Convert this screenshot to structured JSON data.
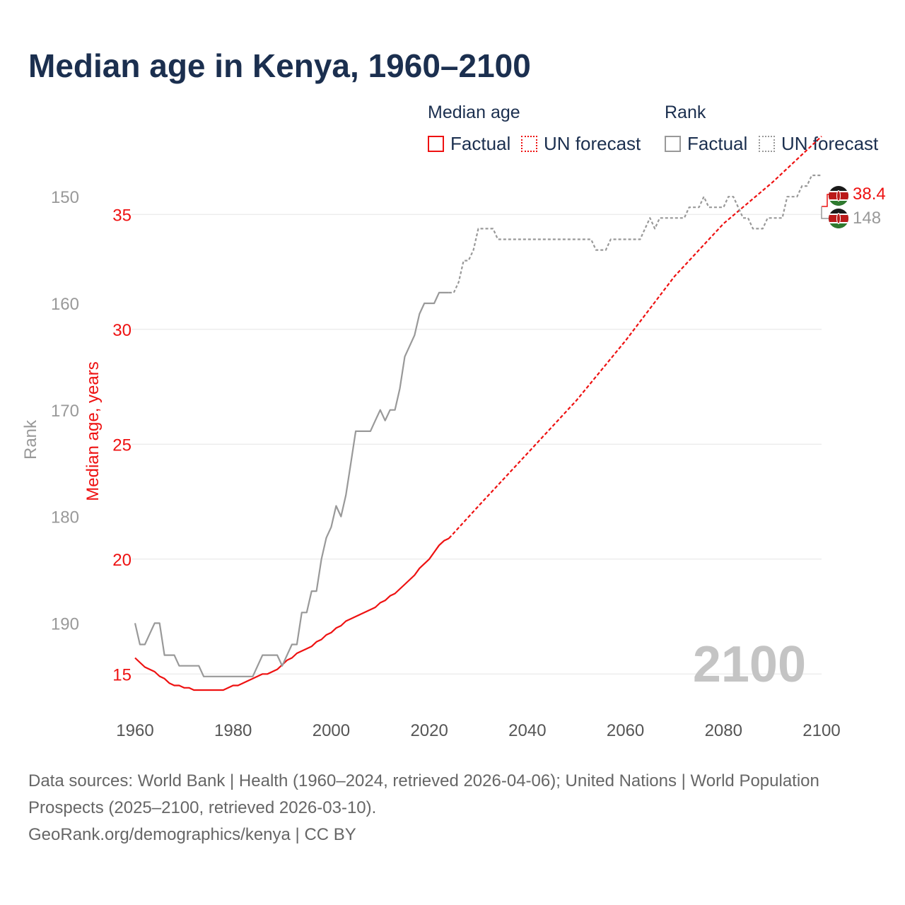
{
  "title": "Median age in Kenya, 1960–2100",
  "legend": {
    "median_header": "Median age",
    "rank_header": "Rank",
    "factual": "Factual",
    "forecast": "UN forecast"
  },
  "colors": {
    "median": "#ee1111",
    "rank": "#999999",
    "title": "#1b2f4f",
    "grid": "#e6e6e6",
    "year_label": "#c4c4c4"
  },
  "year_label": "2100",
  "end_labels": {
    "median": "38.4",
    "rank": "148"
  },
  "footer": {
    "sources": "Data sources: World Bank | Health (1960–2024, retrieved 2026-04-06); United Nations | World Population Prospects (2025–2100, retrieved 2026-03-10).",
    "credit": "GeoRank.org/demographics/kenya | CC BY"
  },
  "chart_data": {
    "type": "line",
    "xlabel": "",
    "ylabel_median": "Median age, years",
    "ylabel_rank": "Rank",
    "xlim": [
      1960,
      2100
    ],
    "x_ticks": [
      1960,
      1980,
      2000,
      2020,
      2040,
      2060,
      2080,
      2100
    ],
    "median_ylim": [
      13.5,
      36.7
    ],
    "median_ticks": [
      15,
      20,
      25,
      30,
      35
    ],
    "rank_ylim": [
      148,
      198
    ],
    "rank_ticks": [
      150,
      160,
      170,
      180,
      190
    ],
    "rank_inverted": true,
    "series": [
      {
        "name": "Median age (Factual)",
        "axis": "median",
        "points": [
          [
            1960,
            15.7
          ],
          [
            1961,
            15.5
          ],
          [
            1962,
            15.3
          ],
          [
            1963,
            15.2
          ],
          [
            1964,
            15.1
          ],
          [
            1965,
            14.9
          ],
          [
            1966,
            14.8
          ],
          [
            1967,
            14.6
          ],
          [
            1968,
            14.5
          ],
          [
            1969,
            14.5
          ],
          [
            1970,
            14.4
          ],
          [
            1971,
            14.4
          ],
          [
            1972,
            14.3
          ],
          [
            1973,
            14.3
          ],
          [
            1974,
            14.3
          ],
          [
            1975,
            14.3
          ],
          [
            1976,
            14.3
          ],
          [
            1977,
            14.3
          ],
          [
            1978,
            14.3
          ],
          [
            1979,
            14.4
          ],
          [
            1980,
            14.5
          ],
          [
            1981,
            14.5
          ],
          [
            1982,
            14.6
          ],
          [
            1983,
            14.7
          ],
          [
            1984,
            14.8
          ],
          [
            1985,
            14.9
          ],
          [
            1986,
            15.0
          ],
          [
            1987,
            15.0
          ],
          [
            1988,
            15.1
          ],
          [
            1989,
            15.2
          ],
          [
            1990,
            15.4
          ],
          [
            1991,
            15.6
          ],
          [
            1992,
            15.7
          ],
          [
            1993,
            15.9
          ],
          [
            1994,
            16.0
          ],
          [
            1995,
            16.1
          ],
          [
            1996,
            16.2
          ],
          [
            1997,
            16.4
          ],
          [
            1998,
            16.5
          ],
          [
            1999,
            16.7
          ],
          [
            2000,
            16.8
          ],
          [
            2001,
            17.0
          ],
          [
            2002,
            17.1
          ],
          [
            2003,
            17.3
          ],
          [
            2004,
            17.4
          ],
          [
            2005,
            17.5
          ],
          [
            2006,
            17.6
          ],
          [
            2007,
            17.7
          ],
          [
            2008,
            17.8
          ],
          [
            2009,
            17.9
          ],
          [
            2010,
            18.1
          ],
          [
            2011,
            18.2
          ],
          [
            2012,
            18.4
          ],
          [
            2013,
            18.5
          ],
          [
            2014,
            18.7
          ],
          [
            2015,
            18.9
          ],
          [
            2016,
            19.1
          ],
          [
            2017,
            19.3
          ],
          [
            2018,
            19.6
          ],
          [
            2019,
            19.8
          ],
          [
            2020,
            20.0
          ],
          [
            2021,
            20.3
          ],
          [
            2022,
            20.6
          ],
          [
            2023,
            20.8
          ],
          [
            2024,
            20.9
          ]
        ]
      },
      {
        "name": "Median age (UN forecast)",
        "axis": "median",
        "points": [
          [
            2024,
            20.9
          ],
          [
            2030,
            22.3
          ],
          [
            2040,
            24.6
          ],
          [
            2050,
            26.9
          ],
          [
            2060,
            29.5
          ],
          [
            2070,
            32.3
          ],
          [
            2080,
            34.6
          ],
          [
            2090,
            36.4
          ],
          [
            2100,
            38.4
          ]
        ]
      },
      {
        "name": "Rank (Factual)",
        "axis": "rank",
        "points": [
          [
            1960,
            190
          ],
          [
            1961,
            192
          ],
          [
            1962,
            192
          ],
          [
            1963,
            191
          ],
          [
            1964,
            190
          ],
          [
            1965,
            190
          ],
          [
            1966,
            193
          ],
          [
            1967,
            193
          ],
          [
            1968,
            193
          ],
          [
            1969,
            194
          ],
          [
            1970,
            194
          ],
          [
            1971,
            194
          ],
          [
            1972,
            194
          ],
          [
            1973,
            194
          ],
          [
            1974,
            195
          ],
          [
            1975,
            195
          ],
          [
            1976,
            195
          ],
          [
            1977,
            195
          ],
          [
            1978,
            195
          ],
          [
            1979,
            195
          ],
          [
            1980,
            195
          ],
          [
            1981,
            195
          ],
          [
            1982,
            195
          ],
          [
            1983,
            195
          ],
          [
            1984,
            195
          ],
          [
            1985,
            194
          ],
          [
            1986,
            193
          ],
          [
            1987,
            193
          ],
          [
            1988,
            193
          ],
          [
            1989,
            193
          ],
          [
            1990,
            194
          ],
          [
            1991,
            193
          ],
          [
            1992,
            192
          ],
          [
            1993,
            192
          ],
          [
            1994,
            189
          ],
          [
            1995,
            189
          ],
          [
            1996,
            187
          ],
          [
            1997,
            187
          ],
          [
            1998,
            184
          ],
          [
            1999,
            182
          ],
          [
            2000,
            181
          ],
          [
            2001,
            179
          ],
          [
            2002,
            180
          ],
          [
            2003,
            178
          ],
          [
            2004,
            175
          ],
          [
            2005,
            172
          ],
          [
            2006,
            172
          ],
          [
            2007,
            172
          ],
          [
            2008,
            172
          ],
          [
            2009,
            171
          ],
          [
            2010,
            170
          ],
          [
            2011,
            171
          ],
          [
            2012,
            170
          ],
          [
            2013,
            170
          ],
          [
            2014,
            168
          ],
          [
            2015,
            165
          ],
          [
            2016,
            164
          ],
          [
            2017,
            163
          ],
          [
            2018,
            161
          ],
          [
            2019,
            160
          ],
          [
            2020,
            160
          ],
          [
            2021,
            160
          ],
          [
            2022,
            159
          ],
          [
            2023,
            159
          ],
          [
            2024,
            159
          ]
        ]
      },
      {
        "name": "Rank (UN forecast)",
        "axis": "rank",
        "points": [
          [
            2024,
            159
          ],
          [
            2025,
            159
          ],
          [
            2026,
            158
          ],
          [
            2027,
            156
          ],
          [
            2028,
            156
          ],
          [
            2029,
            155
          ],
          [
            2030,
            153
          ],
          [
            2031,
            153
          ],
          [
            2032,
            153
          ],
          [
            2033,
            153
          ],
          [
            2034,
            154
          ],
          [
            2040,
            154
          ],
          [
            2050,
            154
          ],
          [
            2052,
            154
          ],
          [
            2053,
            154
          ],
          [
            2054,
            155
          ],
          [
            2055,
            155
          ],
          [
            2056,
            155
          ],
          [
            2057,
            154
          ],
          [
            2060,
            154
          ],
          [
            2062,
            154
          ],
          [
            2063,
            154
          ],
          [
            2064,
            153
          ],
          [
            2065,
            152
          ],
          [
            2066,
            153
          ],
          [
            2067,
            152
          ],
          [
            2070,
            152
          ],
          [
            2071,
            152
          ],
          [
            2072,
            152
          ],
          [
            2073,
            151
          ],
          [
            2074,
            151
          ],
          [
            2075,
            151
          ],
          [
            2076,
            150
          ],
          [
            2077,
            151
          ],
          [
            2080,
            151
          ],
          [
            2081,
            150
          ],
          [
            2082,
            150
          ],
          [
            2083,
            151
          ],
          [
            2084,
            152
          ],
          [
            2085,
            152
          ],
          [
            2086,
            153
          ],
          [
            2087,
            153
          ],
          [
            2088,
            153
          ],
          [
            2089,
            152
          ],
          [
            2090,
            152
          ],
          [
            2091,
            152
          ],
          [
            2092,
            152
          ],
          [
            2093,
            150
          ],
          [
            2094,
            150
          ],
          [
            2095,
            150
          ],
          [
            2096,
            149
          ],
          [
            2097,
            149
          ],
          [
            2098,
            148
          ],
          [
            2099,
            148
          ],
          [
            2100,
            148
          ]
        ]
      }
    ]
  }
}
